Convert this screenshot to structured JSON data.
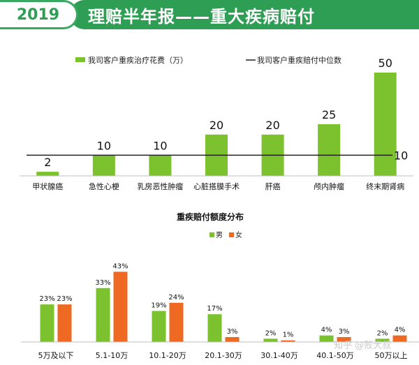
{
  "banner": {
    "year": "2019",
    "title": "理赔半年报——重大疾病赔付"
  },
  "colors": {
    "green": "#7cc22e",
    "orange": "#ee6a22",
    "dark_green": "#2f9e55",
    "line": "#222222"
  },
  "chart_data": [
    {
      "type": "bar",
      "title": "",
      "categories": [
        "甲状腺癌",
        "急性心梗",
        "乳房恶性肿瘤",
        "心脏搭膜手术",
        "肝癌",
        "颅内肿瘤",
        "终末期肾病"
      ],
      "series": [
        {
          "name": "我司客户重疾治疗花费（万）",
          "values": [
            2,
            10,
            10,
            20,
            20,
            25,
            50
          ]
        }
      ],
      "reference_line": {
        "name": "我司客户重疾赔付中位数",
        "value": 10
      },
      "xlabel": "",
      "ylabel": "",
      "ylim": [
        0,
        50
      ],
      "grid": false,
      "legend": "top"
    },
    {
      "type": "bar",
      "title": "重疾赔付额度分布",
      "categories": [
        "5万及以下",
        "5.1-10万",
        "10.1-20万",
        "20.1-30万",
        "30.1-40万",
        "40.1-50万",
        "50万以上"
      ],
      "series": [
        {
          "name": "男",
          "values": [
            23,
            33,
            19,
            17,
            2,
            4,
            2
          ]
        },
        {
          "name": "女",
          "values": [
            23,
            43,
            24,
            3,
            1,
            3,
            4
          ]
        }
      ],
      "value_suffix": "%",
      "xlabel": "",
      "ylabel": "",
      "ylim": [
        0,
        45
      ],
      "grid": false,
      "legend": "top"
    }
  ],
  "watermark": "知乎 @败犬叔"
}
